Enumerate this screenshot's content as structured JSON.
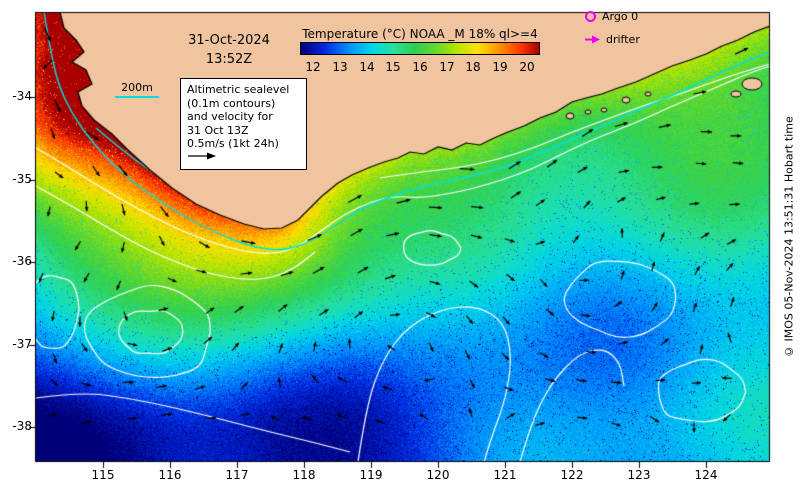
{
  "figure": {
    "timestamp": {
      "date": "31-Oct-2024",
      "time": "13:52Z"
    },
    "colorbar": {
      "title": "Temperature (°C) NOAA _M 18% ql>=4",
      "ticks": [
        "12",
        "13",
        "14",
        "15",
        "16",
        "17",
        "18",
        "19",
        "20"
      ],
      "domain": [
        11.5,
        20.5
      ],
      "stops": [
        {
          "t": 11.5,
          "c": "#000078"
        },
        {
          "t": 12.4,
          "c": "#0028e0"
        },
        {
          "t": 13.3,
          "c": "#0090ff"
        },
        {
          "t": 14.2,
          "c": "#00d8e8"
        },
        {
          "t": 15.0,
          "c": "#28e09a"
        },
        {
          "t": 15.8,
          "c": "#2ed052"
        },
        {
          "t": 16.6,
          "c": "#66d82a"
        },
        {
          "t": 17.4,
          "c": "#b8e400"
        },
        {
          "t": 18.2,
          "c": "#ffe000"
        },
        {
          "t": 19.0,
          "c": "#ff9000"
        },
        {
          "t": 19.8,
          "c": "#ff3800"
        },
        {
          "t": 20.5,
          "c": "#a80000"
        }
      ]
    },
    "legend": {
      "argo": "Argo 0",
      "drifter": "drifter",
      "marker_color": "#ee00ee"
    },
    "annotation": {
      "lines": [
        "Altimetric sealevel",
        "(0.1m contours)",
        "and velocity for",
        "31 Oct 13Z",
        "0.5m/s (1kt 24h)"
      ]
    },
    "bathymetry": {
      "label": "200m",
      "color": "#00e0e0"
    },
    "copyright": "© IMOS 05-Nov-2024 13:51:31 Hobart time",
    "axes": {
      "x_ticks": [
        "115",
        "116",
        "117",
        "118",
        "119",
        "120",
        "121",
        "122",
        "123",
        "124"
      ],
      "y_ticks": [
        "-34",
        "-35",
        "-36",
        "-37",
        "-38"
      ]
    },
    "colors": {
      "land": "#f0c49e",
      "coastline": "#000000",
      "contour": "#ffffff",
      "vector": "#000000",
      "background": "#ffffff"
    }
  }
}
